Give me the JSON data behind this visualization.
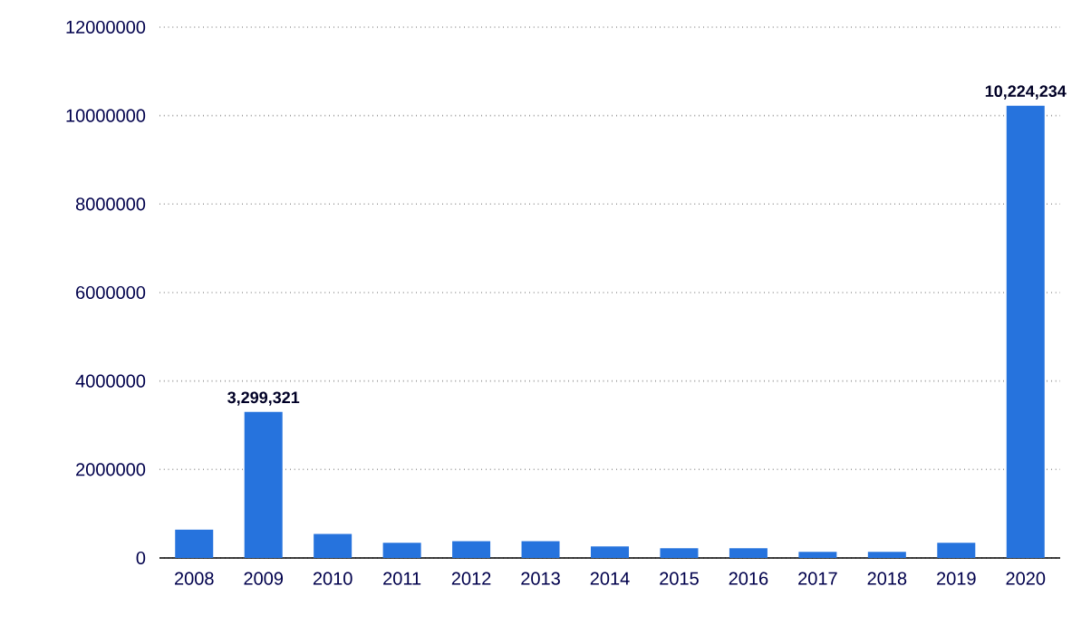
{
  "chart_data": {
    "type": "bar",
    "categories": [
      "2008",
      "2009",
      "2010",
      "2011",
      "2012",
      "2013",
      "2014",
      "2015",
      "2016",
      "2017",
      "2018",
      "2019",
      "2020"
    ],
    "values": [
      640000,
      3299321,
      540000,
      340000,
      380000,
      380000,
      260000,
      220000,
      220000,
      140000,
      140000,
      340000,
      10224234
    ],
    "value_labels": [
      null,
      "3,299,321",
      null,
      null,
      null,
      null,
      null,
      null,
      null,
      null,
      null,
      null,
      "10,224,234"
    ],
    "color": "#2673dd",
    "ylim": [
      0,
      12000000
    ],
    "yticks": [
      0,
      2000000,
      4000000,
      6000000,
      8000000,
      10000000,
      12000000
    ],
    "grid": "y"
  }
}
